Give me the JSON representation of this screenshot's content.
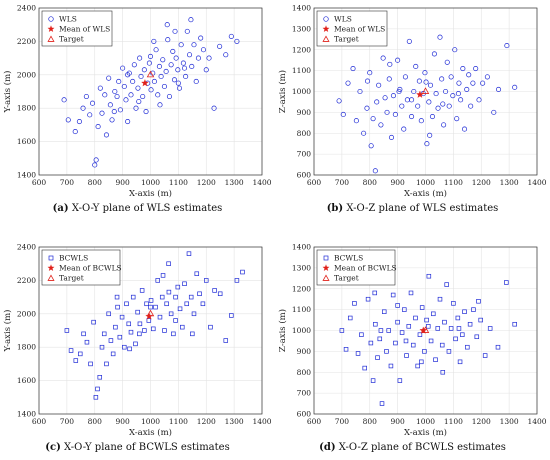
{
  "chart_data": [
    {
      "type": "scatter",
      "marker": "circle",
      "xlabel": "X-axis (m)",
      "ylabel": "Y-axis (m)",
      "xlim": [
        600,
        1400
      ],
      "ylim": [
        1400,
        2400
      ],
      "xticks": [
        600,
        700,
        800,
        900,
        1000,
        1100,
        1200,
        1300,
        1400
      ],
      "yticks": [
        1400,
        1600,
        1800,
        2000,
        2200,
        2400
      ],
      "legend": [
        "WLS",
        "Mean of WLS",
        "Target"
      ],
      "legend_position": "top-left",
      "series_color": "#1f2bd6",
      "mean": [
        980,
        1950
      ],
      "target": [
        1000,
        2000
      ],
      "caption_label": "(a)",
      "caption_text": "X-O-Y plane of WLS estimates",
      "points": [
        [
          690,
          1850
        ],
        [
          705,
          1730
        ],
        [
          730,
          1660
        ],
        [
          745,
          1720
        ],
        [
          758,
          1800
        ],
        [
          770,
          1870
        ],
        [
          782,
          1760
        ],
        [
          792,
          1830
        ],
        [
          800,
          1460
        ],
        [
          805,
          1490
        ],
        [
          812,
          1690
        ],
        [
          820,
          1920
        ],
        [
          826,
          1770
        ],
        [
          836,
          1880
        ],
        [
          842,
          1640
        ],
        [
          850,
          1980
        ],
        [
          856,
          1820
        ],
        [
          862,
          1730
        ],
        [
          872,
          1900
        ],
        [
          880,
          1870
        ],
        [
          886,
          1960
        ],
        [
          892,
          1790
        ],
        [
          900,
          2040
        ],
        [
          906,
          1930
        ],
        [
          912,
          1850
        ],
        [
          918,
          1720
        ],
        [
          924,
          2010
        ],
        [
          930,
          1880
        ],
        [
          936,
          1960
        ],
        [
          942,
          2060
        ],
        [
          948,
          1800
        ],
        [
          955,
          1920
        ],
        [
          961,
          2100
        ],
        [
          966,
          1990
        ],
        [
          972,
          1870
        ],
        [
          978,
          2030
        ],
        [
          984,
          1780
        ],
        [
          990,
          1950
        ],
        [
          996,
          2070
        ],
        [
          1002,
          1910
        ],
        [
          1008,
          2010
        ],
        [
          1014,
          1960
        ],
        [
          1020,
          2150
        ],
        [
          1026,
          1880
        ],
        [
          1032,
          2050
        ],
        [
          1038,
          1990
        ],
        [
          1044,
          2090
        ],
        [
          1050,
          1930
        ],
        [
          1056,
          2020
        ],
        [
          1062,
          2210
        ],
        [
          1068,
          1870
        ],
        [
          1074,
          2060
        ],
        [
          1080,
          2140
        ],
        [
          1086,
          1970
        ],
        [
          1092,
          2100
        ],
        [
          1098,
          2030
        ],
        [
          1104,
          1920
        ],
        [
          1110,
          2180
        ],
        [
          1118,
          2070
        ],
        [
          1126,
          1990
        ],
        [
          1132,
          2260
        ],
        [
          1140,
          2120
        ],
        [
          1148,
          2050
        ],
        [
          1156,
          2180
        ],
        [
          1164,
          1960
        ],
        [
          1172,
          2100
        ],
        [
          1180,
          2220
        ],
        [
          1190,
          2150
        ],
        [
          1200,
          2030
        ],
        [
          1210,
          2100
        ],
        [
          1228,
          1800
        ],
        [
          1248,
          2170
        ],
        [
          1270,
          2120
        ],
        [
          1290,
          2230
        ],
        [
          1310,
          2200
        ],
        [
          918,
          2000
        ],
        [
          1012,
          2200
        ],
        [
          1060,
          2300
        ],
        [
          1145,
          2330
        ],
        [
          958,
          1840
        ],
        [
          1034,
          1820
        ],
        [
          1100,
          1950
        ],
        [
          870,
          1780
        ],
        [
          1000,
          2110
        ],
        [
          1088,
          2260
        ],
        [
          1122,
          2040
        ]
      ]
    },
    {
      "type": "scatter",
      "marker": "circle",
      "xlabel": "X-axis (m)",
      "ylabel": "Z-axis (m)",
      "xlim": [
        600,
        1400
      ],
      "ylim": [
        600,
        1400
      ],
      "xticks": [
        600,
        700,
        800,
        900,
        1000,
        1100,
        1200,
        1300,
        1400
      ],
      "yticks": [
        600,
        700,
        800,
        900,
        1000,
        1100,
        1200,
        1300,
        1400
      ],
      "legend": [
        "WLS",
        "Mean of WLS",
        "Target"
      ],
      "legend_position": "top-left",
      "series_color": "#1f2bd6",
      "mean": [
        980,
        985
      ],
      "target": [
        1000,
        1000
      ],
      "caption_label": "(b)",
      "caption_text": "X-O-Z plane of WLS estimates",
      "points": [
        [
          690,
          955
        ],
        [
          705,
          890
        ],
        [
          722,
          1040
        ],
        [
          740,
          1110
        ],
        [
          752,
          860
        ],
        [
          765,
          1000
        ],
        [
          778,
          800
        ],
        [
          790,
          920
        ],
        [
          800,
          1090
        ],
        [
          805,
          740
        ],
        [
          812,
          870
        ],
        [
          820,
          620
        ],
        [
          825,
          950
        ],
        [
          832,
          1030
        ],
        [
          840,
          840
        ],
        [
          848,
          1160
        ],
        [
          855,
          970
        ],
        [
          862,
          900
        ],
        [
          870,
          1060
        ],
        [
          878,
          780
        ],
        [
          885,
          980
        ],
        [
          892,
          890
        ],
        [
          900,
          1150
        ],
        [
          908,
          1010
        ],
        [
          915,
          930
        ],
        [
          922,
          820
        ],
        [
          928,
          1070
        ],
        [
          935,
          960
        ],
        [
          942,
          1240
        ],
        [
          950,
          880
        ],
        [
          958,
          1000
        ],
        [
          965,
          1120
        ],
        [
          972,
          930
        ],
        [
          978,
          1050
        ],
        [
          985,
          860
        ],
        [
          992,
          990
        ],
        [
          998,
          1090
        ],
        [
          1005,
          750
        ],
        [
          1012,
          950
        ],
        [
          1018,
          1030
        ],
        [
          1025,
          880
        ],
        [
          1032,
          1180
        ],
        [
          1038,
          990
        ],
        [
          1045,
          920
        ],
        [
          1052,
          1260
        ],
        [
          1058,
          1060
        ],
        [
          1065,
          840
        ],
        [
          1072,
          1000
        ],
        [
          1078,
          1140
        ],
        [
          1085,
          930
        ],
        [
          1092,
          1070
        ],
        [
          1098,
          980
        ],
        [
          1105,
          1200
        ],
        [
          1112,
          870
        ],
        [
          1120,
          1040
        ],
        [
          1126,
          960
        ],
        [
          1134,
          1110
        ],
        [
          1140,
          820
        ],
        [
          1148,
          1010
        ],
        [
          1155,
          1080
        ],
        [
          1162,
          930
        ],
        [
          1170,
          1040
        ],
        [
          1180,
          1110
        ],
        [
          1192,
          960
        ],
        [
          1205,
          1040
        ],
        [
          1222,
          1070
        ],
        [
          1245,
          900
        ],
        [
          1262,
          1010
        ],
        [
          1292,
          1220
        ],
        [
          1320,
          1020
        ],
        [
          905,
          1000
        ],
        [
          950,
          960
        ],
        [
          1002,
          1045
        ],
        [
          1015,
          790
        ],
        [
          1062,
          940
        ],
        [
          1118,
          990
        ],
        [
          872,
          1130
        ],
        [
          792,
          1050
        ]
      ]
    },
    {
      "type": "scatter",
      "marker": "square",
      "xlabel": "X-axis (m)",
      "ylabel": "Y-axis (m)",
      "xlim": [
        600,
        1400
      ],
      "ylim": [
        1400,
        2400
      ],
      "xticks": [
        600,
        700,
        800,
        900,
        1000,
        1100,
        1200,
        1300,
        1400
      ],
      "yticks": [
        1400,
        1600,
        1800,
        2000,
        2200,
        2400
      ],
      "legend": [
        "BCWLS",
        "Mean of BCWLS",
        "Target"
      ],
      "legend_position": "top-left",
      "series_color": "#1f2bd6",
      "mean": [
        995,
        1985
      ],
      "target": [
        1000,
        2000
      ],
      "caption_label": "(c)",
      "caption_text": "X-O-Y plane of BCWLS estimates",
      "points": [
        [
          700,
          1900
        ],
        [
          715,
          1780
        ],
        [
          732,
          1720
        ],
        [
          748,
          1760
        ],
        [
          760,
          1880
        ],
        [
          772,
          1830
        ],
        [
          785,
          1700
        ],
        [
          796,
          1950
        ],
        [
          804,
          1500
        ],
        [
          810,
          1550
        ],
        [
          818,
          1620
        ],
        [
          826,
          1800
        ],
        [
          834,
          1880
        ],
        [
          842,
          1700
        ],
        [
          850,
          2000
        ],
        [
          858,
          1840
        ],
        [
          866,
          1760
        ],
        [
          874,
          1920
        ],
        [
          882,
          2040
        ],
        [
          890,
          1860
        ],
        [
          898,
          1980
        ],
        [
          906,
          1800
        ],
        [
          914,
          2060
        ],
        [
          922,
          1940
        ],
        [
          930,
          1890
        ],
        [
          938,
          2100
        ],
        [
          946,
          1820
        ],
        [
          954,
          2010
        ],
        [
          962,
          1940
        ],
        [
          970,
          2140
        ],
        [
          978,
          1900
        ],
        [
          986,
          2060
        ],
        [
          994,
          1960
        ],
        [
          1002,
          2080
        ],
        [
          1010,
          1910
        ],
        [
          1018,
          2040
        ],
        [
          1026,
          2200
        ],
        [
          1034,
          1980
        ],
        [
          1042,
          2100
        ],
        [
          1050,
          1900
        ],
        [
          1058,
          2060
        ],
        [
          1066,
          2130
        ],
        [
          1074,
          2000
        ],
        [
          1082,
          1880
        ],
        [
          1090,
          2100
        ],
        [
          1098,
          2160
        ],
        [
          1106,
          2030
        ],
        [
          1114,
          1920
        ],
        [
          1122,
          2180
        ],
        [
          1130,
          2060
        ],
        [
          1138,
          2360
        ],
        [
          1146,
          2100
        ],
        [
          1156,
          2000
        ],
        [
          1166,
          2240
        ],
        [
          1176,
          2120
        ],
        [
          1188,
          2060
        ],
        [
          1200,
          2200
        ],
        [
          1215,
          1920
        ],
        [
          1230,
          2140
        ],
        [
          1250,
          2120
        ],
        [
          1270,
          1840
        ],
        [
          1290,
          1990
        ],
        [
          1310,
          2200
        ],
        [
          1330,
          2250
        ],
        [
          1000,
          2040
        ],
        [
          1045,
          2230
        ],
        [
          1090,
          1960
        ],
        [
          960,
          1880
        ],
        [
          880,
          2100
        ],
        [
          925,
          1790
        ],
        [
          1065,
          2300
        ],
        [
          1150,
          1880
        ]
      ]
    },
    {
      "type": "scatter",
      "marker": "square",
      "xlabel": "X-axis (m)",
      "ylabel": "Z-axis (m)",
      "xlim": [
        600,
        1400
      ],
      "ylim": [
        600,
        1400
      ],
      "xticks": [
        600,
        700,
        800,
        900,
        1000,
        1100,
        1200,
        1300,
        1400
      ],
      "yticks": [
        600,
        700,
        800,
        900,
        1000,
        1100,
        1200,
        1300,
        1400
      ],
      "legend": [
        "BCWLS",
        "Mean of BCWLS",
        "Target"
      ],
      "legend_position": "top-left",
      "series_color": "#1f2bd6",
      "mean": [
        992,
        1000
      ],
      "target": [
        1000,
        1000
      ],
      "caption_label": "(d)",
      "caption_text": "X-O-Z plane of BCWLS estimates",
      "points": [
        [
          700,
          1000
        ],
        [
          715,
          910
        ],
        [
          730,
          1060
        ],
        [
          745,
          1130
        ],
        [
          758,
          890
        ],
        [
          770,
          980
        ],
        [
          782,
          820
        ],
        [
          794,
          1150
        ],
        [
          804,
          940
        ],
        [
          812,
          760
        ],
        [
          820,
          1030
        ],
        [
          828,
          870
        ],
        [
          836,
          960
        ],
        [
          844,
          650
        ],
        [
          852,
          1090
        ],
        [
          860,
          900
        ],
        [
          868,
          1000
        ],
        [
          876,
          830
        ],
        [
          884,
          1170
        ],
        [
          892,
          940
        ],
        [
          900,
          1040
        ],
        [
          908,
          760
        ],
        [
          916,
          990
        ],
        [
          924,
          1100
        ],
        [
          932,
          880
        ],
        [
          940,
          1020
        ],
        [
          948,
          1180
        ],
        [
          956,
          930
        ],
        [
          964,
          1060
        ],
        [
          972,
          830
        ],
        [
          980,
          980
        ],
        [
          988,
          1110
        ],
        [
          996,
          900
        ],
        [
          1004,
          1050
        ],
        [
          1012,
          1260
        ],
        [
          1020,
          950
        ],
        [
          1028,
          1080
        ],
        [
          1036,
          860
        ],
        [
          1044,
          1010
        ],
        [
          1052,
          1150
        ],
        [
          1060,
          930
        ],
        [
          1068,
          1040
        ],
        [
          1076,
          1220
        ],
        [
          1084,
          900
        ],
        [
          1092,
          1010
        ],
        [
          1100,
          1130
        ],
        [
          1108,
          960
        ],
        [
          1116,
          1060
        ],
        [
          1124,
          850
        ],
        [
          1132,
          980
        ],
        [
          1140,
          1090
        ],
        [
          1150,
          920
        ],
        [
          1160,
          1030
        ],
        [
          1172,
          1100
        ],
        [
          1184,
          970
        ],
        [
          1198,
          1050
        ],
        [
          1214,
          880
        ],
        [
          1232,
          1010
        ],
        [
          1260,
          920
        ],
        [
          1290,
          1230
        ],
        [
          1320,
          1030
        ],
        [
          840,
          1000
        ],
        [
          930,
          950
        ],
        [
          1010,
          1020
        ],
        [
          1062,
          800
        ],
        [
          1120,
          1010
        ],
        [
          985,
          850
        ],
        [
          900,
          1120
        ],
        [
          818,
          1180
        ],
        [
          1190,
          1140
        ]
      ]
    }
  ]
}
